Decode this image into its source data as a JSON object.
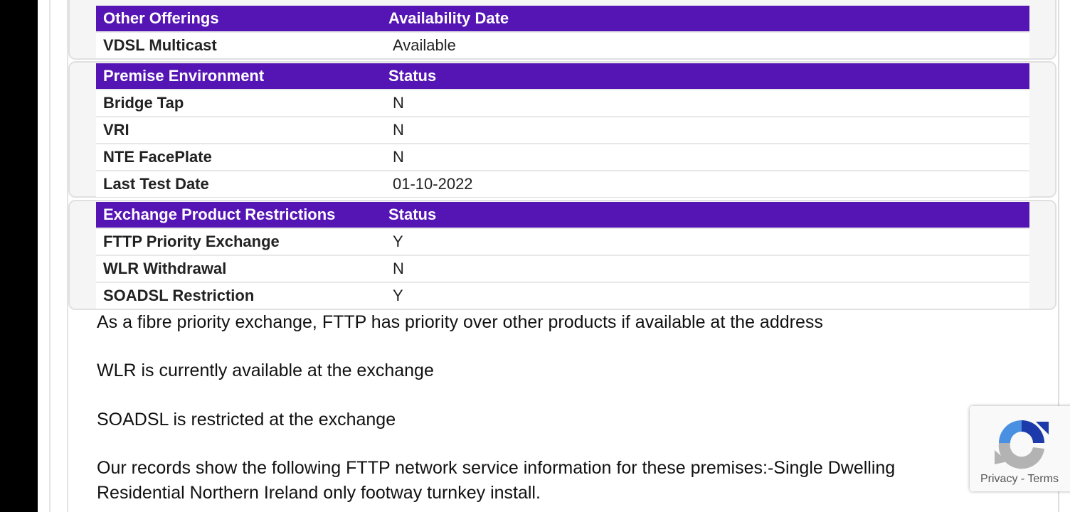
{
  "sections": [
    {
      "headers": [
        "Other Offerings",
        "Availability Date"
      ],
      "rows": [
        [
          "VDSL Multicast",
          "Available"
        ]
      ]
    },
    {
      "headers": [
        "Premise Environment",
        "Status"
      ],
      "rows": [
        [
          "Bridge Tap",
          "N"
        ],
        [
          "VRI",
          "N"
        ],
        [
          "NTE FacePlate",
          "N"
        ],
        [
          "Last Test Date",
          "01-10-2022"
        ]
      ]
    },
    {
      "headers": [
        "Exchange Product Restrictions",
        "Status"
      ],
      "rows": [
        [
          "FTTP Priority Exchange",
          "Y"
        ],
        [
          "WLR Withdrawal",
          "N"
        ],
        [
          "SOADSL Restriction",
          "Y"
        ]
      ]
    }
  ],
  "paragraphs": [
    "As a fibre priority exchange, FTTP has priority over other products if available at the address",
    "WLR is currently available at the exchange",
    "SOADSL is restricted at the exchange",
    "Our records show the following FTTP network service information for these premises:-Single Dwelling",
    "Residential Northern Ireland only footway turnkey install."
  ],
  "recaptcha": {
    "privacy": "Privacy",
    "sep": "-",
    "terms": "Terms",
    "icon": "recaptcha-icon"
  },
  "colors": {
    "header": "#5514b4"
  }
}
